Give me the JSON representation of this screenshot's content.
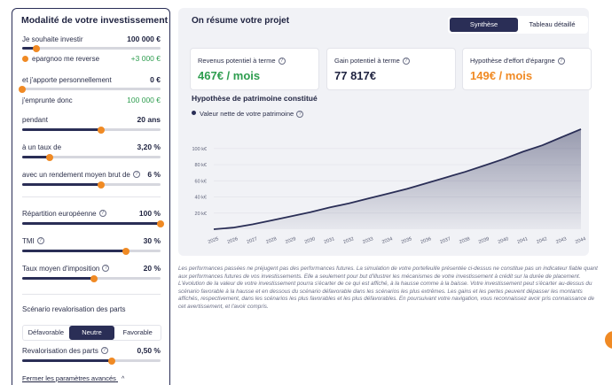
{
  "left": {
    "title": "Modalité de votre investissement",
    "rows": [
      {
        "label": "Je souhaite investir",
        "value": "100 000 €",
        "slider": 0.1
      },
      {
        "label": "epargnoo me reverse",
        "value": "+3 000 €"
      },
      {
        "label": "et j'apporte personnellement",
        "value": "0 €",
        "slider": 0.0
      },
      {
        "label": "j'emprunte donc",
        "value": "100 000 €"
      },
      {
        "label": "pendant",
        "value": "20 ans",
        "slider": 0.45
      },
      {
        "label": "à un taux de",
        "value": "3,20 %",
        "slider": 0.2
      },
      {
        "label": "avec un rendement moyen brut de",
        "value": "6 %",
        "slider": 0.45
      },
      {
        "label": "Répartition européenne",
        "value": "100 %",
        "slider": 1.0
      },
      {
        "label": "TMI",
        "value": "30 %",
        "slider": 0.63
      },
      {
        "label": "Taux moyen d'imposition",
        "value": "20 %",
        "slider": 0.4
      },
      {
        "label": "Revalorisation des parts",
        "value": "0,50 %",
        "slider": 0.55
      }
    ],
    "scenario_label": "Scénario revalorisation des parts",
    "scenario_options": [
      "Défavorable",
      "Neutre",
      "Favorable"
    ],
    "close_link": "Fermer les paramètres avancés",
    "close_icon": "chevron-up-icon"
  },
  "card": {
    "title": "On résume votre projet",
    "tabs": [
      "Synthèse",
      "Tableau détaillé"
    ],
    "metrics": [
      {
        "label": "Revenus potentiel à terme",
        "value": "467€ / mois",
        "color": "#2e9d4f"
      },
      {
        "label": "Gain potentiel à terme",
        "value": "77 817€",
        "color": "#1f2340"
      },
      {
        "label": "Hypothèse d'effort d'épargne",
        "value": "149€ / mois",
        "color": "#f08a24"
      }
    ],
    "chart_title": "Hypothèse de patrimoine constitué"
  },
  "chart_data": {
    "type": "area",
    "series": [
      {
        "name": "Valeur nette de votre patrimoine",
        "values": [
          0,
          2,
          6,
          11,
          16,
          21,
          27,
          32,
          38,
          44,
          50,
          57,
          64,
          71,
          79,
          87,
          96,
          104,
          114,
          124
        ]
      }
    ],
    "x": [
      "2025",
      "2026",
      "2027",
      "2028",
      "2029",
      "2030",
      "2031",
      "2032",
      "2033",
      "2034",
      "2035",
      "2036",
      "2037",
      "2038",
      "2039",
      "2040",
      "2041",
      "2042",
      "2043",
      "2044"
    ],
    "y_ticks": [
      "20 k€",
      "40 k€",
      "60 k€",
      "80 k€",
      "100 k€"
    ],
    "ylim": [
      0,
      125
    ],
    "grid": true
  },
  "disclaimer": "Les performances passées ne préjugent pas des performances futures. La simulation de votre portefeuille présentée ci-dessus ne constitue pas un indicateur fiable quant aux performances futures de vos investissements. Elle a seulement pour but d'illustrer les mécanismes de votre investissement à crédit sur la durée de placement. L'évolution de la valeur de votre investissement pourra s'écarter de ce qui est affiché, à la hausse comme à la baisse. Votre investissement peut s'écarter au-dessus du scénario favorable à la hausse et en dessous du scénario défavorable dans les scénarios les plus extrêmes. Les gains et les pertes peuvent dépasser les montants affichés, respectivement, dans les scénarios les plus favorables et les plus défavorables. En poursuivant votre navigation, vous reconnaissez avoir pris connaissance de cet avertissement, et l'avoir compris.",
  "colors": {
    "accent": "#f08a24",
    "primary": "#2a2e56",
    "green": "#2e9d4f"
  }
}
